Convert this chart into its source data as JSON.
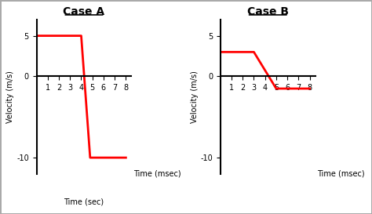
{
  "case_a": {
    "title": "Case A",
    "x": [
      0,
      4,
      4.8,
      8
    ],
    "y": [
      5,
      5,
      -10,
      -10
    ],
    "ylabel": "Velocity (m/s)",
    "xlabel_top": "Time (msec)",
    "xlabel_bottom": "Time (sec)",
    "xlim": [
      0,
      8.5
    ],
    "ylim": [
      -12,
      7
    ],
    "xticks": [
      1,
      2,
      3,
      4,
      5,
      6,
      7,
      8
    ],
    "yticks": [
      -10,
      0,
      5
    ],
    "ytick_labels": [
      "-10",
      "0",
      "5"
    ]
  },
  "case_b": {
    "title": "Case B",
    "x": [
      0,
      3,
      5,
      8
    ],
    "y": [
      3,
      3,
      -1.5,
      -1.5
    ],
    "ylabel": "Velocity (m/s)",
    "xlabel_top": "Time (msec)",
    "xlim": [
      0,
      8.5
    ],
    "ylim": [
      -12,
      7
    ],
    "xticks": [
      1,
      2,
      3,
      4,
      5,
      6,
      7,
      8
    ],
    "yticks": [
      -10,
      0,
      5
    ],
    "ytick_labels": [
      "-10",
      "0",
      "5"
    ]
  },
  "line_color": "#ff0000",
  "line_width": 2.0,
  "bg_color": "#ffffff",
  "title_fontsize": 10,
  "label_fontsize": 7,
  "tick_fontsize": 7
}
